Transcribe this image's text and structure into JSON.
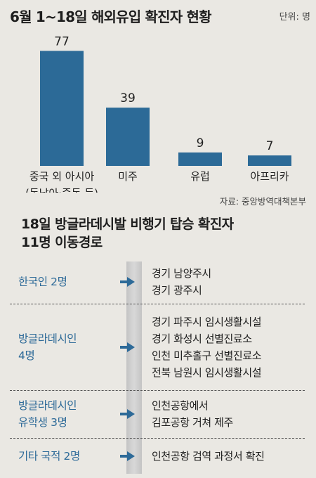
{
  "title": "6월 1~18일 해외유입 확진자 현황",
  "unit_label": "단위: 명",
  "chart_data": {
    "type": "bar",
    "categories": [
      "중국 외 아시아\n(동남아·중동 등)",
      "미주",
      "유럽",
      "아프리카"
    ],
    "values": [
      77,
      39,
      9,
      7
    ],
    "ylim": [
      0,
      80
    ],
    "bar_color": "#2c6a97",
    "grid": false
  },
  "source": "자료: 중앙방역대책본부",
  "section_title": [
    "18일 방글라데시발 비행기 탑승 확진자",
    "11명 이동경로"
  ],
  "routes": [
    {
      "label": [
        "한국인 2명"
      ],
      "destinations": [
        "경기 남양주시",
        "경기 광주시"
      ]
    },
    {
      "label": [
        "방글라데시인",
        "4명"
      ],
      "destinations": [
        "경기 파주시 임시생활시설",
        "경기 화성시 선별진료소",
        "인천 미추홀구 선별진료소",
        "전북 남원시 임시생활시설"
      ]
    },
    {
      "label": [
        "방글라데시인",
        "유학생 3명"
      ],
      "destinations": [
        "인천공항에서",
        "김포공항 거쳐 제주"
      ]
    },
    {
      "label": [
        "기타 국적 2명"
      ],
      "destinations": [
        "인천공항 검역 과정서 확진"
      ]
    }
  ],
  "colors": {
    "accent": "#2d6a98",
    "background": "#eae8e3"
  }
}
